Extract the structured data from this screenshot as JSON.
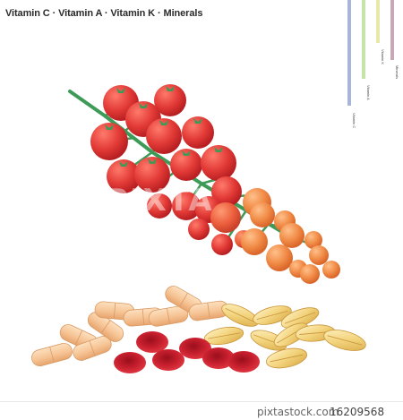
{
  "title": "Vitamin C · Vitamin A · Vitamin K · Minerals",
  "legend": [
    {
      "label": "Vitamin C",
      "color": "#a9b4d9"
    },
    {
      "label": "Vitamin A",
      "color": "#c7e4a8"
    },
    {
      "label": "Vitamin K",
      "color": "#e8e9a8"
    },
    {
      "label": "Minerals",
      "color": "#c8a8b6"
    }
  ],
  "watermark": "PIXTA",
  "footer": {
    "brand": "pixtastock.com",
    "id": "16209568"
  },
  "colors": {
    "stem": "#3e9a57",
    "tomato_red": "#e23a36",
    "tomato_orange": "#f08a45",
    "capsule_peach": "#f6c495",
    "red_blood_cell": "#c8202e",
    "seed_gold": "#f0d27a"
  },
  "icons": [
    "tomato-icon",
    "capsule-icon",
    "red-cell-icon",
    "seed-icon"
  ]
}
